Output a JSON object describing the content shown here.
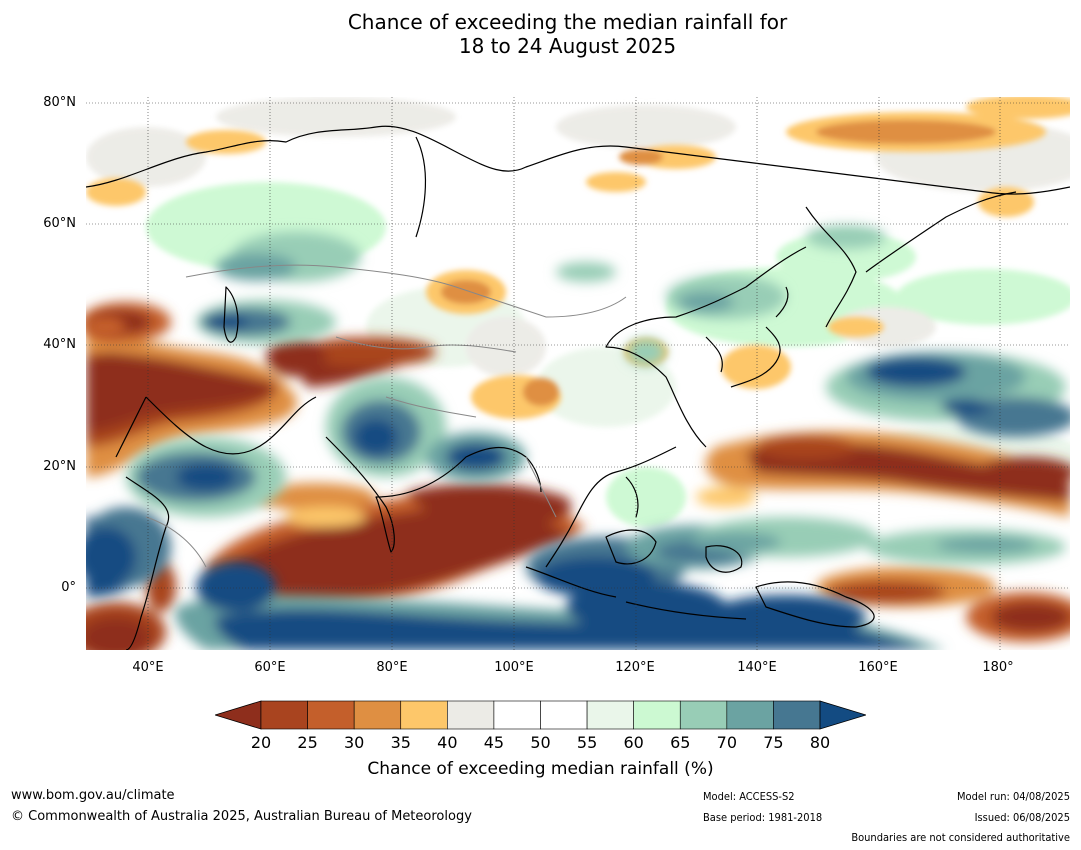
{
  "title_line1": "Chance of exceeding the median rainfall for",
  "title_line2": "18 to 24 August 2025",
  "map": {
    "lat_labels": [
      "80°N",
      "60°N",
      "40°N",
      "20°N",
      "0°"
    ],
    "lon_labels": [
      "40°E",
      "60°E",
      "80°E",
      "100°E",
      "120°E",
      "140°E",
      "160°E",
      "180°"
    ],
    "lon_range": [
      30,
      191.5
    ],
    "lat_range": [
      -10,
      81
    ]
  },
  "colorbar": {
    "ticks": [
      "20",
      "25",
      "30",
      "35",
      "40",
      "45",
      "50",
      "55",
      "60",
      "65",
      "70",
      "75",
      "80"
    ],
    "colors": [
      "#8e2e1c",
      "#a9441f",
      "#c45f2b",
      "#df8f42",
      "#fdc76a",
      "#ecebe6",
      "#ffffff",
      "#ffffff",
      "#eaf6ea",
      "#ccf9d2",
      "#98cdb6",
      "#6ba3a2",
      "#467791",
      "#134b82"
    ],
    "title": "Chance of exceeding median rainfall (%)"
  },
  "footer": {
    "website": "www.bom.gov.au/climate",
    "copyright": "© Commonwealth of Australia 2025, Australian Bureau of Meteorology",
    "model": "Model: ACCESS-S2",
    "base_period": "Base period: 1981-2018",
    "model_run": "Model run: 04/08/2025",
    "issued": "Issued: 06/08/2025",
    "disclaimer": "Boundaries are not considered authoritative"
  }
}
